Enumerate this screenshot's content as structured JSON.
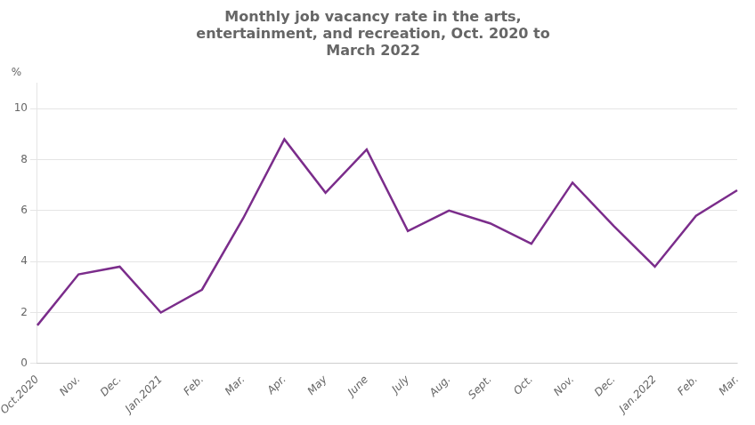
{
  "chart_data": {
    "type": "line",
    "title": "Monthly job vacancy rate in the arts,\nentertainment, and recreation, Oct. 2020 to\nMarch 2022",
    "ylabel": "%",
    "categories": [
      "Oct.2020",
      "Nov.",
      "Dec.",
      "Jan.2021",
      "Feb.",
      "Mar.",
      "Apr.",
      "May",
      "June",
      "July",
      "Aug.",
      "Sept.",
      "Oct.",
      "Nov.",
      "Dec.",
      "Jan.2022",
      "Feb.",
      "Mar."
    ],
    "values": [
      1.5,
      3.5,
      3.8,
      2.0,
      2.9,
      5.7,
      8.8,
      6.7,
      8.4,
      5.2,
      6.0,
      5.5,
      4.7,
      7.1,
      5.4,
      3.8,
      5.8,
      6.8
    ],
    "color": "#7b2d8b",
    "ylim": [
      0,
      11
    ],
    "yticks": [
      0,
      2,
      4,
      6,
      8,
      10
    ],
    "grid": true
  }
}
